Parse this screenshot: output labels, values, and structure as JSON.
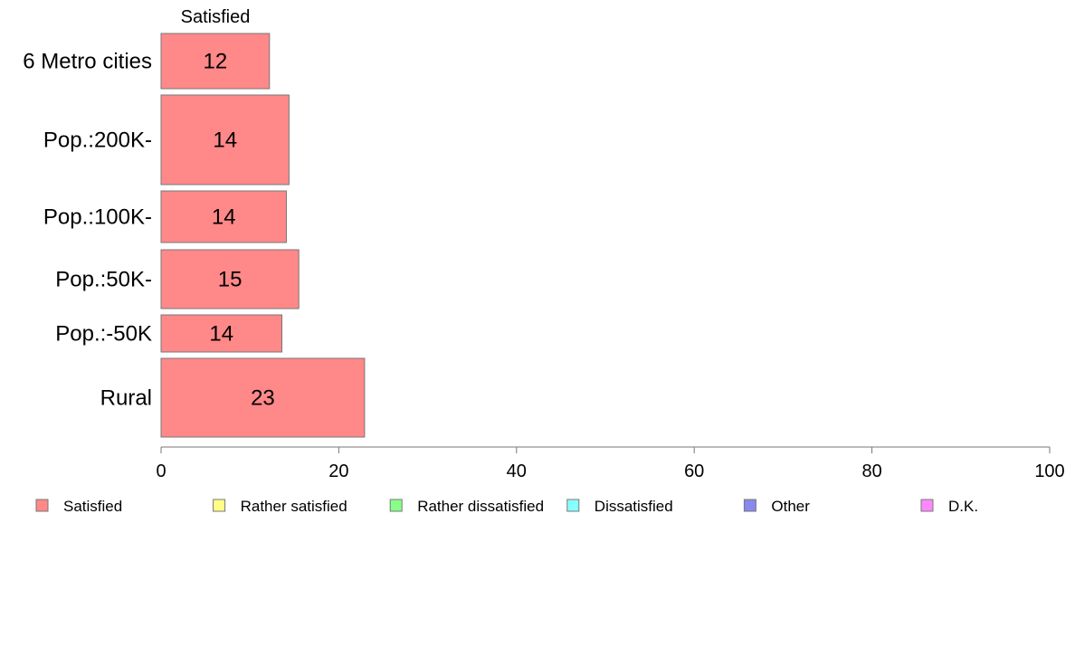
{
  "chart_data": {
    "type": "bar",
    "orientation": "horizontal",
    "stacked": true,
    "categories": [
      "6 Metro cities",
      "Pop.:200K-",
      "Pop.:100K-",
      "Pop.:50K-",
      "Pop.:-50K",
      "Rural"
    ],
    "series": [
      {
        "name": "Satisfied",
        "values": [
          12.2,
          14.4,
          14.1,
          15.5,
          13.6,
          22.9
        ],
        "labels": [
          "12",
          "14",
          "14",
          "15",
          "14",
          "23"
        ],
        "color": "#ff8888"
      }
    ],
    "series_header": "Satisfied",
    "xlim": [
      0,
      100
    ],
    "xticks": [
      0,
      20,
      40,
      60,
      80,
      100
    ],
    "xtick_labels": [
      "0",
      "20",
      "40",
      "60",
      "80",
      "100"
    ],
    "grid": false,
    "legend": {
      "position": "bottom",
      "items": [
        {
          "label": "Satisfied",
          "color": "#ff8888"
        },
        {
          "label": "Rather satisfied",
          "color": "#ffff88"
        },
        {
          "label": "Rather dissatisfied",
          "color": "#88ff88"
        },
        {
          "label": "Dissatisfied",
          "color": "#88ffff"
        },
        {
          "label": "Other",
          "color": "#8888ee"
        },
        {
          "label": "D.K.",
          "color": "#ff88ff"
        }
      ]
    }
  }
}
